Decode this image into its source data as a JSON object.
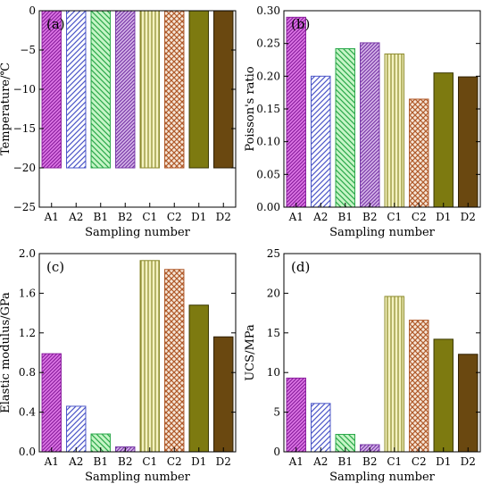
{
  "chart_data": [
    {
      "panel": "(a)",
      "type": "bar",
      "categories": [
        "A1",
        "A2",
        "B1",
        "B2",
        "C1",
        "C2",
        "D1",
        "D2"
      ],
      "values": [
        -20,
        -20,
        -20,
        -20,
        -20,
        -20,
        -20,
        -20
      ],
      "xlabel": "Sampling number",
      "ylabel": "Temperature/℃",
      "ylim": [
        -25,
        0
      ],
      "yticks": [
        0,
        -5,
        -10,
        -15,
        -20,
        -25
      ],
      "ytick_labels": [
        "0",
        "−5",
        "−10",
        "−15",
        "−20",
        "−25"
      ]
    },
    {
      "panel": "(b)",
      "type": "bar",
      "categories": [
        "A1",
        "A2",
        "B1",
        "B2",
        "C1",
        "C2",
        "D1",
        "D2"
      ],
      "values": [
        0.29,
        0.2,
        0.242,
        0.251,
        0.234,
        0.165,
        0.205,
        0.199
      ],
      "xlabel": "Sampling number",
      "ylabel": "Poisson's ratio",
      "ylim": [
        0,
        0.3
      ],
      "yticks": [
        0,
        0.05,
        0.1,
        0.15,
        0.2,
        0.25,
        0.3
      ],
      "ytick_labels": [
        "0.00",
        "0.05",
        "0.10",
        "0.15",
        "0.20",
        "0.25",
        "0.30"
      ]
    },
    {
      "panel": "(c)",
      "type": "bar",
      "categories": [
        "A1",
        "A2",
        "B1",
        "B2",
        "C1",
        "C2",
        "D1",
        "D2"
      ],
      "values": [
        0.99,
        0.46,
        0.18,
        0.05,
        1.93,
        1.84,
        1.48,
        1.16
      ],
      "xlabel": "Sampling number",
      "ylabel": "Elastic modulus/GPa",
      "ylim": [
        0,
        2.0
      ],
      "yticks": [
        0,
        0.4,
        0.8,
        1.2,
        1.6,
        2.0
      ],
      "ytick_labels": [
        "0.0",
        "0.4",
        "0.8",
        "1.2",
        "1.6",
        "2.0"
      ]
    },
    {
      "panel": "(d)",
      "type": "bar",
      "categories": [
        "A1",
        "A2",
        "B1",
        "B2",
        "C1",
        "C2",
        "D1",
        "D2"
      ],
      "values": [
        9.3,
        6.1,
        2.2,
        0.9,
        19.6,
        16.6,
        14.2,
        12.3
      ],
      "xlabel": "Sampling number",
      "ylabel": "UCS/MPa",
      "ylim": [
        0,
        25
      ],
      "yticks": [
        0,
        5,
        10,
        15,
        20,
        25
      ],
      "ytick_labels": [
        "0",
        "5",
        "10",
        "15",
        "20",
        "25"
      ]
    }
  ],
  "bar_styles": [
    {
      "fill": "#e07ae8",
      "stroke": "#8a1f9e",
      "pattern": "diag-dense"
    },
    {
      "fill": "#ffffff",
      "stroke": "#4b56c8",
      "pattern": "diag"
    },
    {
      "fill": "#c6f5c6",
      "stroke": "#2aa84a",
      "pattern": "diag-rev"
    },
    {
      "fill": "#d8b8ea",
      "stroke": "#7a3aa8",
      "pattern": "diag-dense"
    },
    {
      "fill": "#f4f2c0",
      "stroke": "#8c8a2c",
      "pattern": "vert"
    },
    {
      "fill": "#f6e6d8",
      "stroke": "#b05a2a",
      "pattern": "cross"
    },
    {
      "fill": "#7d7a10",
      "stroke": "#3a3800",
      "pattern": "solid"
    },
    {
      "fill": "#6a4810",
      "stroke": "#2e1e00",
      "pattern": "solid"
    }
  ]
}
